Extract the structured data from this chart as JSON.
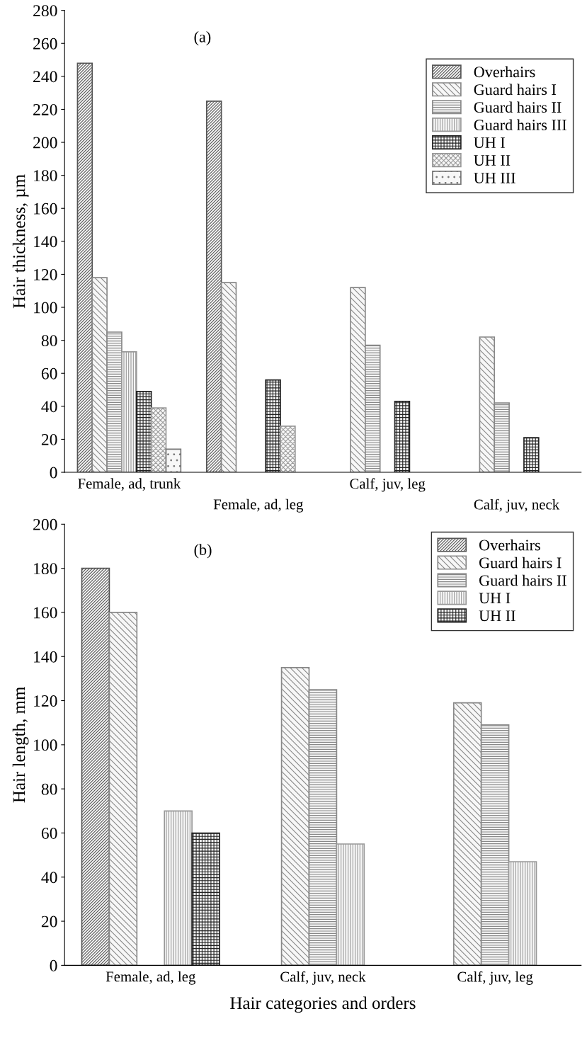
{
  "chart_data": [
    {
      "type": "bar",
      "ylabel": "Hair thickness, µm",
      "annotations": [
        "(a)"
      ],
      "categories": [
        "Female, ad, trunk",
        "Female, ad, leg",
        "Calf, juv, leg",
        "Calf, juv, neck"
      ],
      "ylim": [
        0,
        280
      ],
      "yticks": [
        0,
        20,
        40,
        60,
        80,
        100,
        120,
        140,
        160,
        180,
        200,
        220,
        240,
        260,
        280
      ],
      "legend": "right",
      "grid": false,
      "series": [
        {
          "name": "Overhairs",
          "color": "#555555",
          "values": [
            248,
            225,
            null,
            null
          ]
        },
        {
          "name": "Guard hairs I",
          "color": "#888888",
          "values": [
            118,
            115,
            112,
            82
          ]
        },
        {
          "name": "Guard hairs II",
          "color": "#888888",
          "values": [
            85,
            null,
            77,
            42
          ]
        },
        {
          "name": "Guard hairs III",
          "color": "#999999",
          "values": [
            73,
            null,
            null,
            null
          ]
        },
        {
          "name": "UH I",
          "color": "#222222",
          "values": [
            49,
            56,
            43,
            21
          ]
        },
        {
          "name": "UH II",
          "color": "#999999",
          "values": [
            39,
            28,
            null,
            null
          ]
        },
        {
          "name": "UH III",
          "color": "#777777",
          "values": [
            14,
            null,
            null,
            null
          ]
        }
      ]
    },
    {
      "type": "bar",
      "ylabel": "Hair length, mm",
      "xlabel": "Hair categories and orders",
      "annotations": [
        "(b)"
      ],
      "categories": [
        "Female, ad, leg",
        "Calf, juv, neck",
        "Calf, juv, leg"
      ],
      "ylim": [
        0,
        200
      ],
      "yticks": [
        0,
        20,
        40,
        60,
        80,
        100,
        120,
        140,
        160,
        180,
        200
      ],
      "legend": "top right",
      "grid": false,
      "series": [
        {
          "name": "Overhairs",
          "color": "#555555",
          "values": [
            180,
            null,
            null
          ]
        },
        {
          "name": "Guard hairs I",
          "color": "#888888",
          "values": [
            160,
            135,
            119
          ]
        },
        {
          "name": "Guard hairs II",
          "color": "#888888",
          "values": [
            null,
            125,
            109
          ]
        },
        {
          "name": "UH I",
          "color": "#999999",
          "values": [
            70,
            55,
            47
          ]
        },
        {
          "name": "UH II",
          "color": "#222222",
          "values": [
            60,
            null,
            null
          ]
        }
      ]
    }
  ]
}
